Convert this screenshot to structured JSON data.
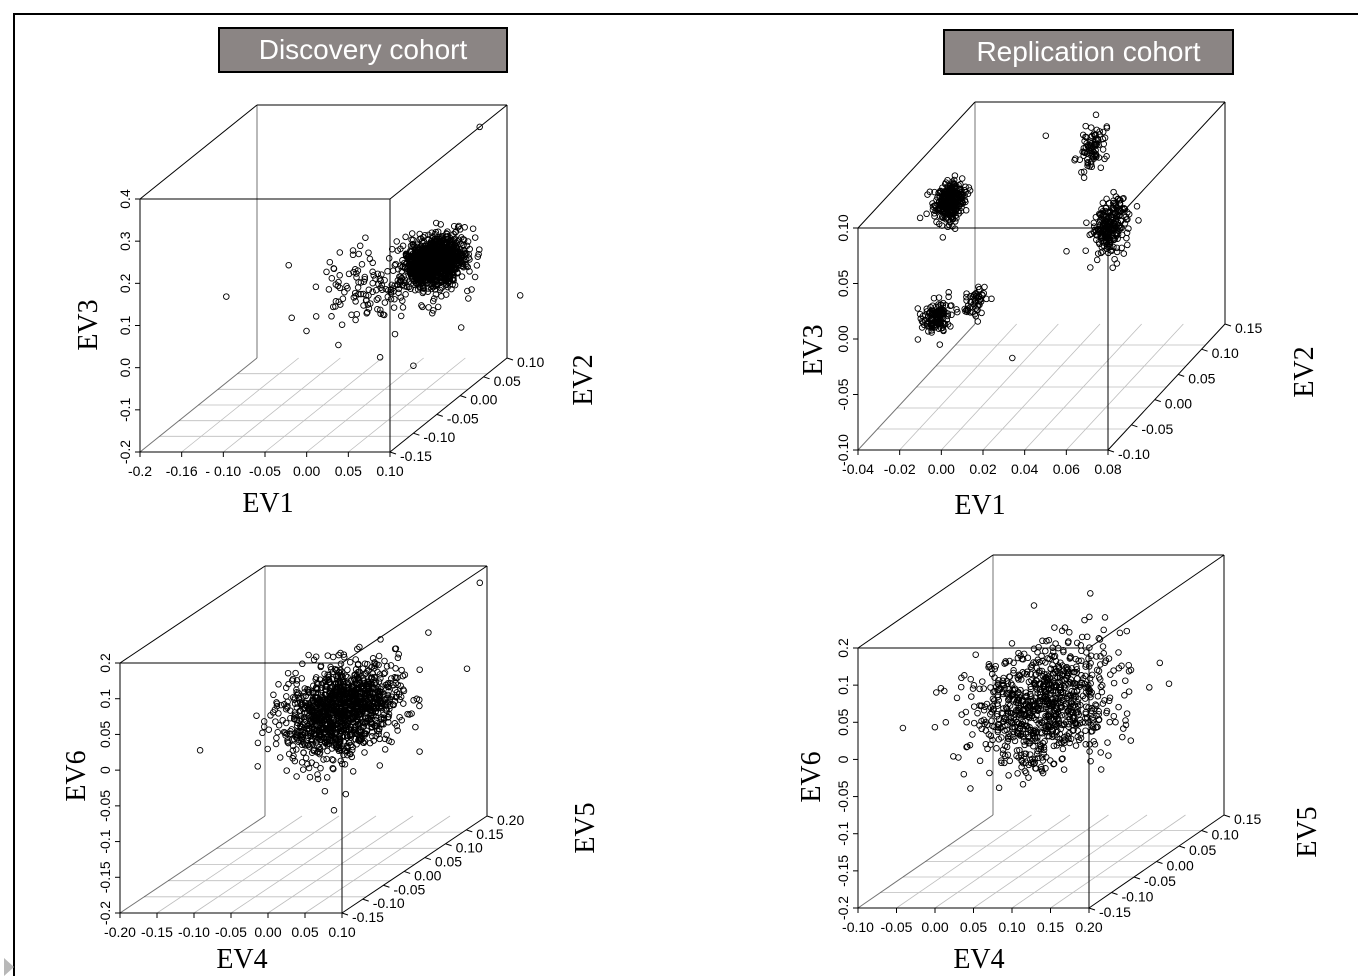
{
  "headers": {
    "discovery": "Discovery cohort",
    "replication": "Replication cohort"
  },
  "chart_data": [
    {
      "type": "scatter",
      "title": "Discovery cohort",
      "xlabel": "EV1",
      "ylabel": "EV2",
      "zlabel": "EV3",
      "xticks": [
        "-0.2",
        "-0.16",
        "- 0.10",
        "-0.05",
        "0.00",
        "0.05",
        "0.10"
      ],
      "yticks": [
        "-0.15",
        "-0.10",
        "-0.05",
        "0.00",
        "0.05",
        "0.10"
      ],
      "zticks": [
        "-0.2",
        "-0.1",
        "0.0",
        "0.1",
        "0.2",
        "0.3",
        "0.4"
      ],
      "xlim": [
        -0.2,
        0.1
      ],
      "ylim": [
        -0.18,
        0.12
      ],
      "zlim": [
        -0.2,
        0.4
      ],
      "grid": true,
      "clusters": [
        {
          "x": 0.07,
          "y": 0.0,
          "z": 0.12,
          "sx": 0.015,
          "sy": 0.02,
          "sz": 0.025,
          "n": 1200
        },
        {
          "x": 0.02,
          "y": -0.02,
          "z": 0.07,
          "sx": 0.04,
          "sy": 0.03,
          "sz": 0.045,
          "n": 180
        }
      ],
      "points": [
        {
          "x": 0.1,
          "y": 0.05,
          "z": 0.4
        },
        {
          "x": -0.19,
          "y": 0.02,
          "z": 0.02
        },
        {
          "x": 0.1,
          "y": -0.12,
          "z": -0.04
        },
        {
          "x": 0.06,
          "y": -0.12,
          "z": -0.02
        }
      ]
    },
    {
      "type": "scatter",
      "title": "Replication cohort",
      "xlabel": "EV1",
      "ylabel": "EV2",
      "zlabel": "EV3",
      "xticks": [
        "-0.04",
        "-0.02",
        "0.00",
        "0.02",
        "0.04",
        "0.06",
        "0.08"
      ],
      "yticks": [
        "-0.10",
        "-0.05",
        "0.00",
        "0.05",
        "0.10",
        "0.15"
      ],
      "zticks": [
        "-0.10",
        "-0.05",
        "0.00",
        "0.05",
        "0.10"
      ],
      "xlim": [
        -0.04,
        0.08
      ],
      "ylim": [
        -0.12,
        0.16
      ],
      "zlim": [
        -0.11,
        0.11
      ],
      "grid": true,
      "clusters": [
        {
          "x": -0.03,
          "y": 0.05,
          "z": 0.06,
          "sx": 0.003,
          "sy": 0.01,
          "sz": 0.009,
          "n": 320
        },
        {
          "x": -0.015,
          "y": -0.06,
          "z": -0.005,
          "sx": 0.003,
          "sy": 0.01,
          "sz": 0.007,
          "n": 140
        },
        {
          "x": 0.004,
          "y": -0.06,
          "z": 0.01,
          "sx": 0.002,
          "sy": 0.01,
          "sz": 0.007,
          "n": 55
        },
        {
          "x": 0.045,
          "y": 0.06,
          "z": 0.03,
          "sx": 0.003,
          "sy": 0.015,
          "sz": 0.014,
          "n": 240
        },
        {
          "x": 0.02,
          "y": 0.14,
          "z": 0.075,
          "sx": 0.002,
          "sy": 0.01,
          "sz": 0.01,
          "n": 85
        }
      ],
      "points": [
        {
          "x": 0.0,
          "y": 0.13,
          "z": 0.09
        },
        {
          "x": 0.03,
          "y": 0.03,
          "z": 0.02
        },
        {
          "x": 0.02,
          "y": -0.05,
          "z": -0.05
        }
      ]
    },
    {
      "type": "scatter",
      "title": "Discovery cohort",
      "xlabel": "EV4",
      "ylabel": "EV5",
      "zlabel": "EV6",
      "xticks": [
        "-0.20",
        "-0.15",
        "-0.10",
        "-0.05",
        "0.00",
        "0.05",
        "0.10"
      ],
      "yticks": [
        "-0.15",
        "-0.10",
        "-0.05",
        "0.00",
        "0.05",
        "0.10",
        "0.15",
        "0.20"
      ],
      "zticks": [
        "-0.2",
        "-0.15",
        "-0.1",
        "-0.05",
        "0",
        "0.05",
        "0.1",
        "0.2"
      ],
      "xlim": [
        -0.2,
        0.1
      ],
      "ylim": [
        -0.18,
        0.22
      ],
      "zlim": [
        -0.2,
        0.22
      ],
      "grid": true,
      "clusters": [
        {
          "x": 0.0,
          "y": 0.02,
          "z": 0.06,
          "sx": 0.03,
          "sy": 0.05,
          "sz": 0.035,
          "n": 1300
        }
      ],
      "points": [
        {
          "x": 0.1,
          "y": 0.2,
          "z": 0.2
        },
        {
          "x": -0.18,
          "y": 0.0,
          "z": 0.0
        },
        {
          "x": 0.05,
          "y": -0.1,
          "z": -0.06
        }
      ]
    },
    {
      "type": "scatter",
      "title": "Replication cohort",
      "xlabel": "EV4",
      "ylabel": "EV5",
      "zlabel": "EV6",
      "xticks": [
        "-0.10",
        "-0.05",
        "0.00",
        "0.05",
        "0.10",
        "0.15",
        "0.20"
      ],
      "yticks": [
        "-0.15",
        "-0.10",
        "-0.05",
        "0.00",
        "0.05",
        "0.10",
        "0.15"
      ],
      "zticks": [
        "-0.2",
        "-0.15",
        "-0.1",
        "-0.05",
        "0",
        "0.05",
        "0.1",
        "0.2"
      ],
      "xlim": [
        -0.1,
        0.2
      ],
      "ylim": [
        -0.18,
        0.18
      ],
      "zlim": [
        -0.2,
        0.22
      ],
      "grid": true,
      "clusters": [
        {
          "x": 0.05,
          "y": 0.0,
          "z": 0.05,
          "sx": 0.04,
          "sy": 0.05,
          "sz": 0.045,
          "n": 900
        }
      ],
      "points": [
        {
          "x": -0.08,
          "y": 0.0,
          "z": 0.08
        },
        {
          "x": 0.18,
          "y": 0.05,
          "z": 0.1
        },
        {
          "x": 0.02,
          "y": -0.05,
          "z": -0.06
        }
      ]
    }
  ]
}
